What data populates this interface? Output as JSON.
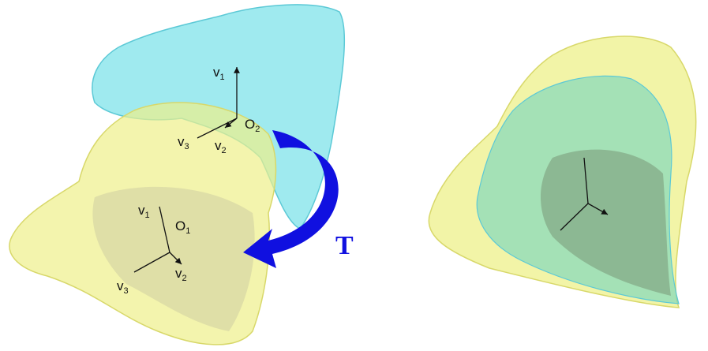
{
  "labels": [
    {
      "base": "v",
      "sub": "1"
    },
    {
      "base": "O",
      "sub": "2"
    },
    {
      "base": "v",
      "sub": "3"
    },
    {
      "base": "v",
      "sub": "2"
    },
    {
      "base": "v",
      "sub": "1"
    },
    {
      "base": "O",
      "sub": "1"
    },
    {
      "base": "v",
      "sub": "3"
    },
    {
      "base": "v",
      "sub": "2"
    }
  ],
  "transform_label": "T"
}
